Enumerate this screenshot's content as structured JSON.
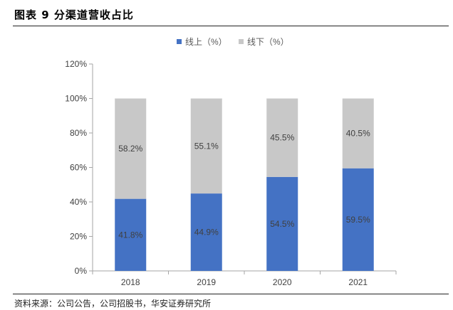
{
  "figure": {
    "title": "图表 9 分渠道营收占比",
    "source": "资料来源：公司公告，公司招股书，华安证券研究所"
  },
  "chart_data": {
    "type": "bar",
    "stacked": true,
    "categories": [
      "2018",
      "2019",
      "2020",
      "2021"
    ],
    "series": [
      {
        "name": "线上（%）",
        "values": [
          41.8,
          44.9,
          54.5,
          59.5
        ],
        "color": "#4472C4",
        "labels": [
          "41.8%",
          "44.9%",
          "54.5%",
          "59.5%"
        ]
      },
      {
        "name": "线下（%）",
        "values": [
          58.2,
          55.1,
          45.5,
          40.5
        ],
        "color": "#C8C8C8",
        "labels": [
          "58.2%",
          "55.1%",
          "45.5%",
          "40.5%"
        ]
      }
    ],
    "ylim": [
      0,
      120
    ],
    "yticks": [
      0,
      20,
      40,
      60,
      80,
      100,
      120
    ],
    "ytick_labels": [
      "0%",
      "20%",
      "40%",
      "60%",
      "80%",
      "100%",
      "120%"
    ],
    "legend_position": "top-center",
    "grid": false,
    "data_label_color": "#404040"
  }
}
